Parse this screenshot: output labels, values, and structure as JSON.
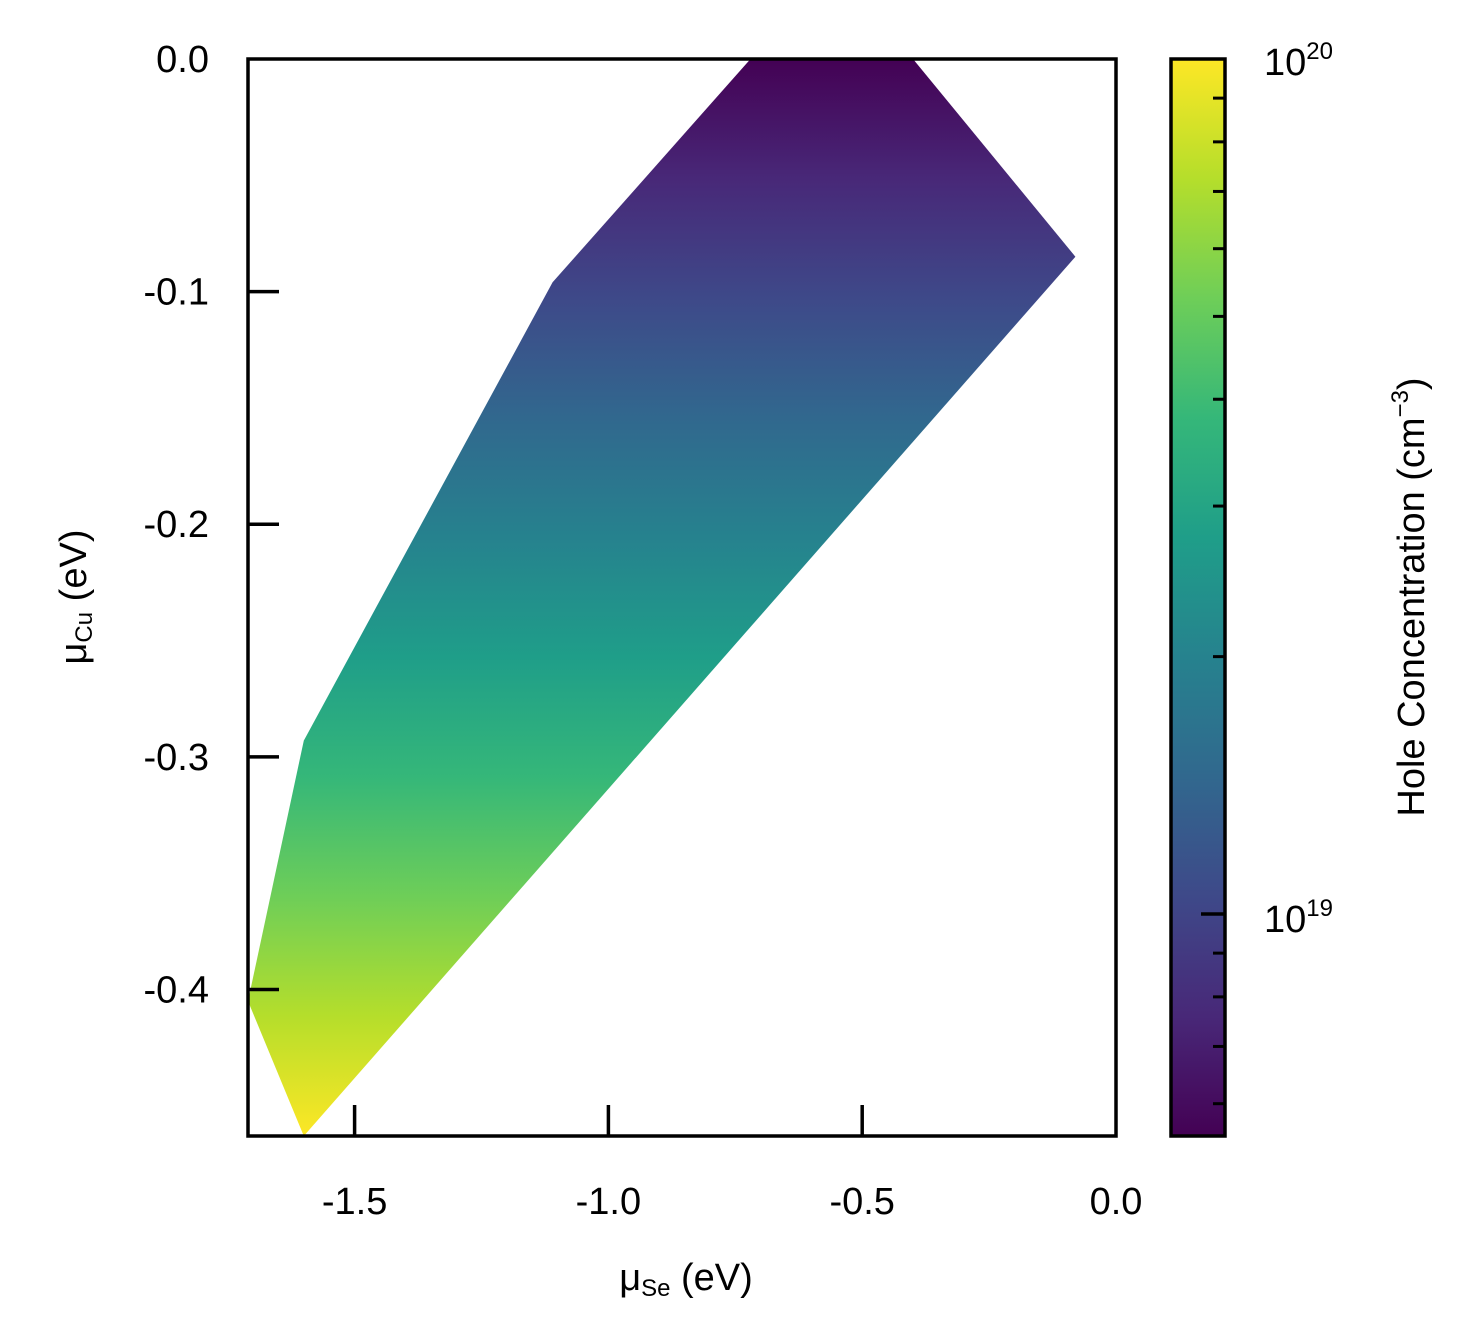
{
  "chart_data": {
    "type": "heatmap",
    "title": "",
    "x_axis": {
      "label_main": "μ",
      "label_sub": "Se",
      "label_unit": " (eV)",
      "lim": [
        -1.71,
        0.0
      ],
      "ticks": [
        -1.5,
        -1.0,
        -0.5,
        0.0
      ],
      "tick_labels": [
        "-1.5",
        "-1.0",
        "-0.5",
        "0.0"
      ]
    },
    "y_axis": {
      "label_main": "μ",
      "label_sub": "Cu",
      "label_unit": " (eV)",
      "lim": [
        -0.463,
        0.0
      ],
      "ticks": [
        0.0,
        -0.1,
        -0.2,
        -0.3,
        -0.4
      ],
      "tick_labels": [
        "0.0",
        "-0.1",
        "-0.2",
        "-0.3",
        "-0.4"
      ]
    },
    "region_polygon": [
      [
        -0.72,
        0.0
      ],
      [
        -0.4,
        0.0
      ],
      [
        -0.08,
        -0.085
      ],
      [
        -1.6,
        -0.463
      ],
      [
        -1.71,
        -0.405
      ],
      [
        -1.6,
        -0.293
      ],
      [
        -1.11,
        -0.096
      ]
    ],
    "color_gradient": {
      "direction": "vertical",
      "top_value_y": 0.0,
      "bottom_value_y": -0.463,
      "colormap": "viridis"
    },
    "colorbar": {
      "label_text": "Hole Concentration (cm",
      "label_sup": "−3",
      "label_close": ")",
      "scale": "log",
      "range": [
        5.5e+18,
        1e+20
      ],
      "major_ticks": [
        {
          "value": 1e+20,
          "base": "10",
          "exp": "20"
        },
        {
          "value": 1e+19,
          "base": "10",
          "exp": "19"
        }
      ],
      "minor_ticks": [
        6e+18,
        7e+18,
        8e+18,
        9e+18,
        2e+19,
        3e+19,
        4e+19,
        5e+19,
        6e+19,
        7e+19,
        8e+19,
        9e+19
      ],
      "colors": [
        "#440154",
        "#482878",
        "#3e4989",
        "#31688e",
        "#26828e",
        "#1f9e89",
        "#35b779",
        "#6ece58",
        "#b5de2b",
        "#fde725"
      ]
    }
  }
}
